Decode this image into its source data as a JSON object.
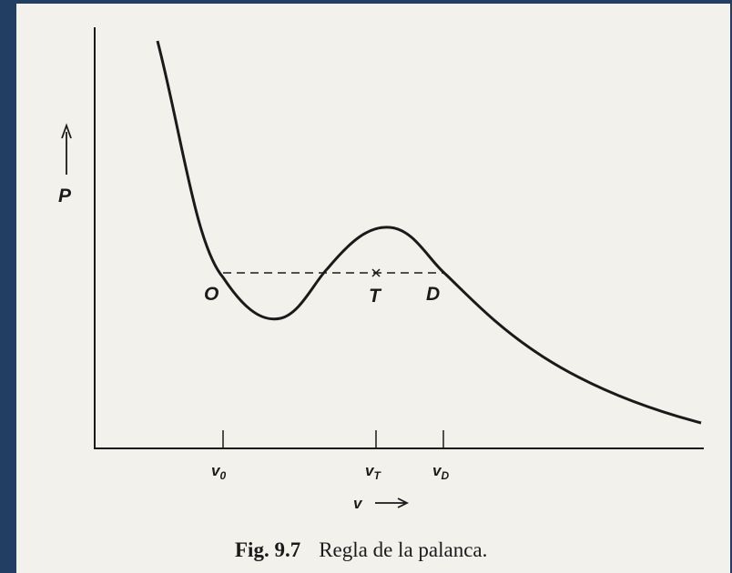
{
  "axis_labels": {
    "y": "P",
    "x": "v"
  },
  "points": [
    {
      "label": "O"
    },
    {
      "label": "T"
    },
    {
      "label": "D"
    }
  ],
  "ticks": [
    {
      "main": "v",
      "sub": "0"
    },
    {
      "main": "v",
      "sub": "T"
    },
    {
      "main": "v",
      "sub": "D"
    }
  ],
  "caption": {
    "number": "Fig. 9.7",
    "text": "Regla de la palanca."
  }
}
